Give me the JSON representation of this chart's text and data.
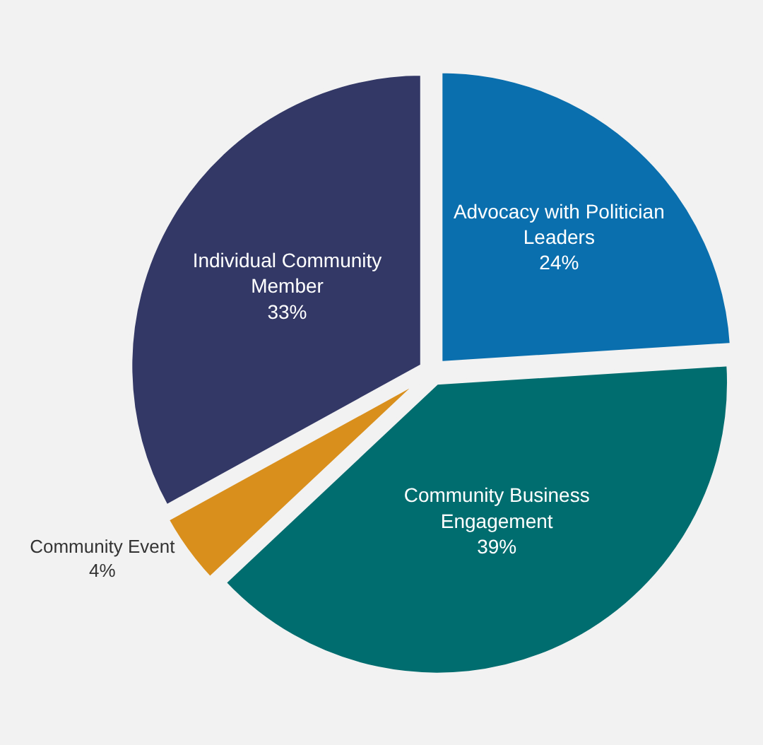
{
  "chart_data": {
    "type": "pie",
    "categories": [
      "Advocacy with Politician Leaders",
      "Community Business Engagement",
      "Community Event",
      "Individual Community Member"
    ],
    "values": [
      24,
      39,
      4,
      33
    ],
    "colors": [
      "#0a6fae",
      "#006d6f",
      "#d98f1c",
      "#333866"
    ],
    "value_labels": [
      "24%",
      "39%",
      "4%",
      "33%"
    ],
    "legend": false
  }
}
